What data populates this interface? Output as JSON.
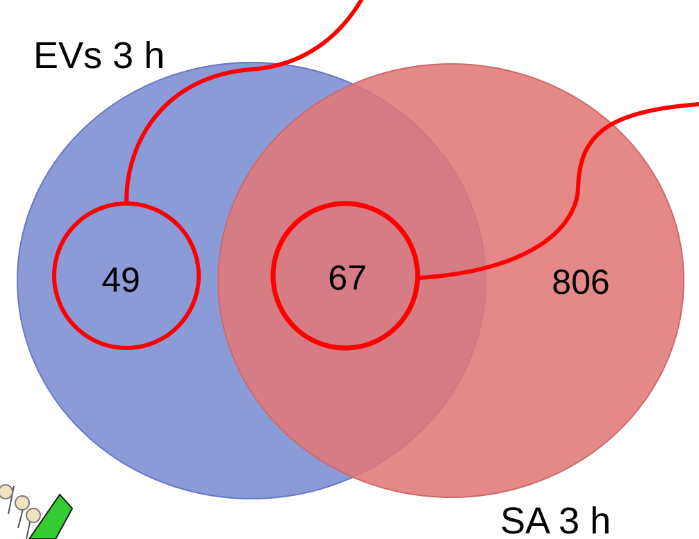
{
  "venn": {
    "sets": [
      {
        "id": "A",
        "label": "EVs 3 h",
        "color": "#8a9bd8",
        "stroke": "#6677c4"
      },
      {
        "id": "B",
        "label": "SA 3 h",
        "color": "#e07878",
        "stroke": "#cc6a6a"
      }
    ],
    "regions": {
      "only_evs": "49",
      "overlap": "67",
      "only_sa": "806"
    },
    "highlight_color": "#ff0000",
    "highlighted_regions": [
      "only_evs",
      "overlap"
    ]
  }
}
